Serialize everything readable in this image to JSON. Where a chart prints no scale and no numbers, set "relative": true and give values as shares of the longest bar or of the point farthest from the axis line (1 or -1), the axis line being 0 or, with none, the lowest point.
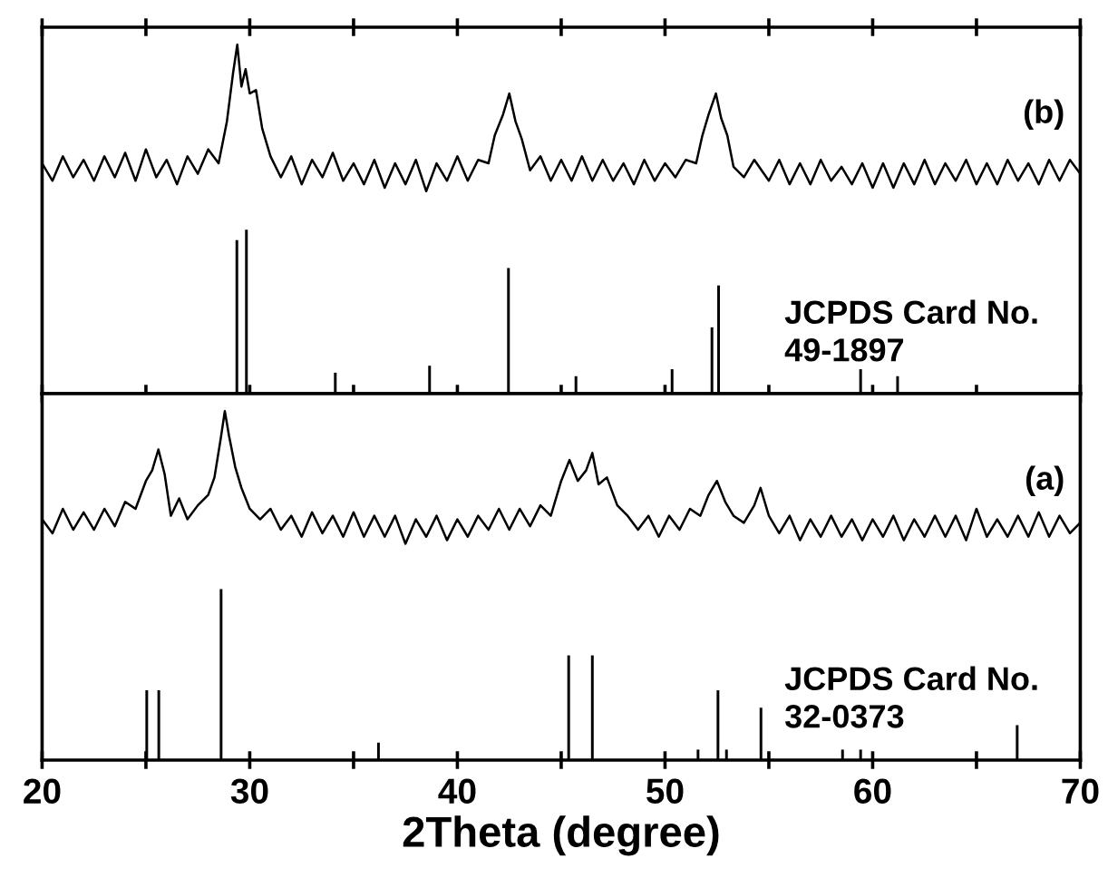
{
  "chart_data": [
    {
      "type": "line",
      "relative": true,
      "xlim": [
        20,
        70
      ],
      "tick_labels": false,
      "xticks": [
        20,
        {
          "value": 25,
          "label": null
        },
        30,
        {
          "value": 35,
          "label": null
        },
        40,
        {
          "value": 45,
          "label": null
        },
        50,
        {
          "value": 55,
          "label": null
        },
        60,
        {
          "value": 65,
          "label": null
        },
        70
      ],
      "annotations": [
        "(b)",
        "JCPDS Card No.\n49-1897"
      ],
      "series": [
        {
          "color": "#000000",
          "x": [
            20,
            20.5,
            21,
            21.5,
            22,
            22.5,
            23,
            23.5,
            24,
            24.5,
            25,
            25.5,
            26,
            26.5,
            27,
            27.5,
            28,
            28.5,
            28.9,
            29.2,
            29.4,
            29.6,
            29.8,
            30.0,
            30.3,
            30.6,
            31.0,
            31.5,
            32,
            32.5,
            33,
            33.5,
            34,
            34.5,
            35,
            35.5,
            36,
            36.5,
            37,
            37.5,
            38,
            38.5,
            39,
            39.5,
            40,
            40.5,
            41,
            41.5,
            41.8,
            42.2,
            42.5,
            42.8,
            43.1,
            43.5,
            44,
            44.5,
            45,
            45.5,
            46,
            46.5,
            47,
            47.5,
            48,
            48.5,
            49,
            49.5,
            50,
            50.5,
            51,
            51.5,
            51.8,
            52.1,
            52.45,
            52.7,
            53.0,
            53.3,
            53.8,
            54.3,
            55,
            55.5,
            56,
            56.5,
            57,
            57.5,
            58,
            58.5,
            59,
            59.5,
            60,
            60.5,
            61,
            61.5,
            62,
            62.5,
            63,
            63.5,
            64,
            64.5,
            65,
            65.5,
            66,
            66.5,
            67,
            67.5,
            68,
            68.5,
            69,
            69.5,
            70
          ],
          "values": [
            0.66,
            0.61,
            0.68,
            0.62,
            0.67,
            0.61,
            0.68,
            0.62,
            0.69,
            0.61,
            0.7,
            0.62,
            0.67,
            0.6,
            0.68,
            0.63,
            0.7,
            0.66,
            0.78,
            0.92,
            1.0,
            0.88,
            0.93,
            0.86,
            0.87,
            0.76,
            0.68,
            0.62,
            0.68,
            0.6,
            0.67,
            0.62,
            0.69,
            0.61,
            0.66,
            0.6,
            0.67,
            0.59,
            0.66,
            0.6,
            0.67,
            0.58,
            0.66,
            0.61,
            0.68,
            0.61,
            0.67,
            0.66,
            0.74,
            0.8,
            0.86,
            0.78,
            0.73,
            0.64,
            0.68,
            0.61,
            0.67,
            0.61,
            0.68,
            0.61,
            0.67,
            0.61,
            0.66,
            0.6,
            0.67,
            0.61,
            0.66,
            0.62,
            0.67,
            0.66,
            0.74,
            0.8,
            0.86,
            0.79,
            0.74,
            0.65,
            0.62,
            0.67,
            0.61,
            0.67,
            0.6,
            0.66,
            0.6,
            0.67,
            0.61,
            0.65,
            0.6,
            0.66,
            0.59,
            0.66,
            0.59,
            0.66,
            0.6,
            0.67,
            0.6,
            0.66,
            0.61,
            0.67,
            0.6,
            0.66,
            0.6,
            0.67,
            0.61,
            0.66,
            0.6,
            0.67,
            0.61,
            0.67,
            0.63
          ]
        },
        {
          "type": "bar",
          "color": "#000000",
          "x": [
            29.38,
            29.84,
            34.12,
            38.66,
            42.46,
            45.71,
            50.34,
            52.26,
            52.58,
            59.42,
            61.2
          ],
          "values": [
            0.44,
            0.47,
            0.06,
            0.08,
            0.36,
            0.05,
            0.07,
            0.19,
            0.31,
            0.07,
            0.05
          ]
        }
      ]
    },
    {
      "type": "line",
      "relative": true,
      "xlim": [
        20,
        70
      ],
      "xlabel": "2Theta (degree)",
      "xticks": [
        20,
        {
          "value": 25,
          "label": null
        },
        30,
        {
          "value": 35,
          "label": null
        },
        40,
        {
          "value": 45,
          "label": null
        },
        50,
        {
          "value": 55,
          "label": null
        },
        60,
        {
          "value": 65,
          "label": null
        },
        70
      ],
      "annotations": [
        "(a)",
        "JCPDS Card No.\n32-0373"
      ],
      "series": [
        {
          "color": "#000000",
          "x": [
            20,
            20.5,
            21,
            21.5,
            22,
            22.5,
            23,
            23.5,
            24,
            24.5,
            25,
            25.3,
            25.6,
            25.9,
            26.2,
            26.6,
            27,
            27.5,
            28,
            28.3,
            28.6,
            28.8,
            29.0,
            29.3,
            29.6,
            30,
            30.5,
            31,
            31.5,
            32,
            32.5,
            33,
            33.5,
            34,
            34.5,
            35,
            35.5,
            36,
            36.5,
            37,
            37.5,
            38,
            38.5,
            39,
            39.5,
            40,
            40.5,
            41,
            41.5,
            42,
            42.5,
            43,
            43.5,
            44,
            44.5,
            45,
            45.4,
            45.8,
            46.2,
            46.5,
            46.8,
            47.2,
            47.7,
            48.2,
            48.7,
            49.2,
            49.7,
            50.2,
            50.7,
            51.2,
            51.7,
            52.1,
            52.5,
            52.9,
            53.3,
            53.8,
            54.3,
            54.6,
            55,
            55.5,
            56,
            56.5,
            57,
            57.5,
            58,
            58.5,
            59,
            59.5,
            60,
            60.5,
            61,
            61.5,
            62,
            62.5,
            63,
            63.5,
            64,
            64.5,
            65,
            65.5,
            66,
            66.5,
            67,
            67.5,
            68,
            68.5,
            69,
            69.5,
            70
          ],
          "values": [
            0.69,
            0.65,
            0.72,
            0.66,
            0.71,
            0.66,
            0.72,
            0.67,
            0.74,
            0.72,
            0.8,
            0.83,
            0.89,
            0.82,
            0.7,
            0.75,
            0.69,
            0.73,
            0.76,
            0.81,
            0.92,
            1.0,
            0.93,
            0.84,
            0.78,
            0.72,
            0.69,
            0.72,
            0.66,
            0.7,
            0.64,
            0.71,
            0.65,
            0.7,
            0.64,
            0.71,
            0.64,
            0.7,
            0.64,
            0.7,
            0.62,
            0.69,
            0.64,
            0.7,
            0.63,
            0.69,
            0.64,
            0.7,
            0.66,
            0.72,
            0.66,
            0.72,
            0.67,
            0.73,
            0.7,
            0.8,
            0.86,
            0.8,
            0.83,
            0.88,
            0.79,
            0.81,
            0.73,
            0.7,
            0.66,
            0.7,
            0.64,
            0.7,
            0.66,
            0.72,
            0.7,
            0.76,
            0.8,
            0.74,
            0.7,
            0.68,
            0.73,
            0.78,
            0.7,
            0.65,
            0.7,
            0.63,
            0.69,
            0.64,
            0.7,
            0.64,
            0.69,
            0.63,
            0.69,
            0.64,
            0.7,
            0.63,
            0.69,
            0.64,
            0.7,
            0.64,
            0.7,
            0.63,
            0.72,
            0.64,
            0.69,
            0.64,
            0.7,
            0.64,
            0.71,
            0.64,
            0.7,
            0.65,
            0.68
          ]
        },
        {
          "type": "bar",
          "color": "#000000",
          "x": [
            25.04,
            25.62,
            28.62,
            36.2,
            45.36,
            46.5,
            51.59,
            52.55,
            52.96,
            54.62,
            58.55,
            59.42,
            66.96
          ],
          "values": [
            0.2,
            0.2,
            0.49,
            0.05,
            0.3,
            0.3,
            0.03,
            0.2,
            0.03,
            0.15,
            0.03,
            0.03,
            0.1
          ]
        }
      ]
    }
  ]
}
